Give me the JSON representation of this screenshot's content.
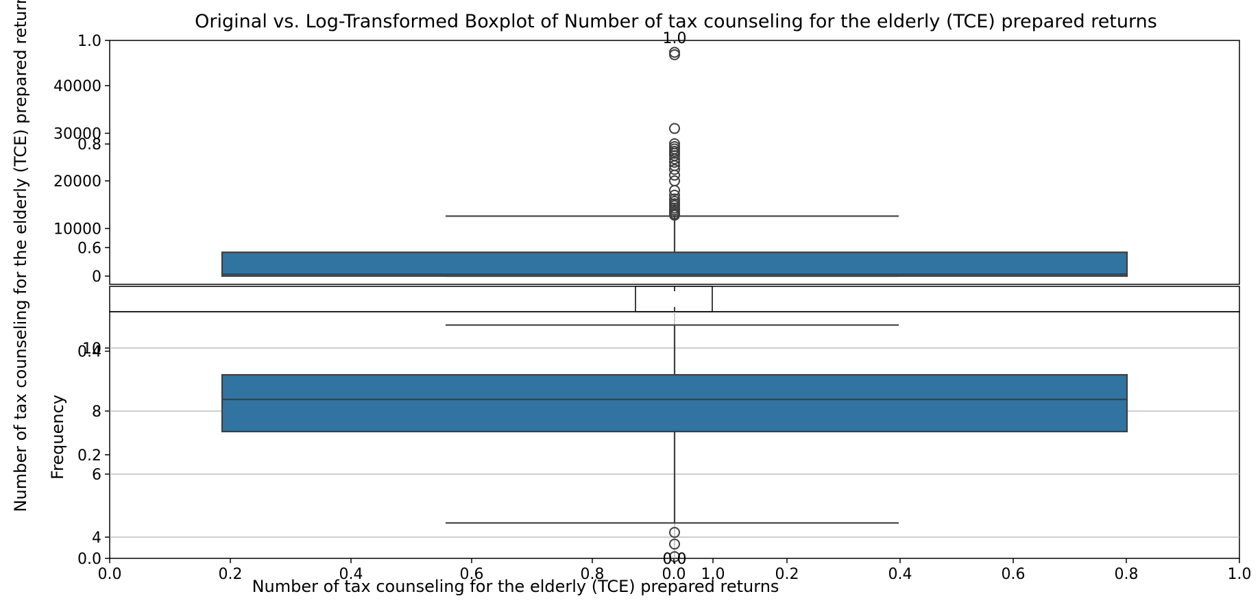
{
  "figure": {
    "title": "Original vs. Log-Transformed Boxplot of Number of tax counseling for the elderly (TCE) prepared returns",
    "xlabel": "Number of tax counseling for the elderly (TCE) prepared returns",
    "ylabel": "Number of tax counseling for the elderly (TCE) prepared returns",
    "ylabel_secondary": "Frequency"
  },
  "chart_data": [
    {
      "type": "boxplot",
      "name": "original",
      "orientation": "vertical",
      "color": "#3274a1",
      "edge_color": "#3f3f3f",
      "ylim": [
        -2500,
        50000
      ],
      "yticks": [
        0,
        10000,
        20000,
        30000,
        40000
      ],
      "stats": {
        "whisker_low": 0,
        "q1": 0,
        "median": 400,
        "q3": 5000,
        "whisker_high": 12600
      },
      "outliers": [
        12800,
        13100,
        13500,
        13900,
        14300,
        14800,
        15200,
        15700,
        16200,
        17000,
        18000,
        20000,
        21200,
        22400,
        23200,
        23900,
        24600,
        25300,
        25800,
        26200,
        26700,
        27200,
        27800,
        31000,
        46500,
        47000
      ],
      "grid": false
    },
    {
      "type": "boxplot",
      "name": "log-transformed",
      "orientation": "vertical",
      "color": "#3274a1",
      "edge_color": "#3f3f3f",
      "ylim": [
        3.3,
        11.4
      ],
      "yticks": [
        4,
        6,
        8,
        10
      ],
      "stats": {
        "whisker_low": 4.45,
        "q1": 7.35,
        "median": 8.37,
        "q3": 9.15,
        "whisker_high": 10.73
      },
      "outliers": [
        4.15,
        3.78,
        3.38
      ],
      "grid": true
    },
    {
      "type": "empty-axes",
      "name": "overlay-left",
      "xticks": [
        "0.0",
        "0.2",
        "0.4",
        "0.6",
        "0.8",
        "1.0"
      ],
      "yticks": [
        "0.0",
        "0.2",
        "0.4",
        "0.6",
        "0.8",
        "1.0"
      ],
      "xlim": [
        0,
        1
      ],
      "ylim": [
        0,
        1
      ]
    },
    {
      "type": "empty-axes",
      "name": "overlay-right",
      "xticks": [
        "0.0",
        "0.2",
        "0.4",
        "0.6",
        "0.8",
        "1.0"
      ],
      "yticks": [
        "0.0",
        "1.0"
      ],
      "xlim": [
        0,
        1
      ],
      "ylim": [
        0,
        1
      ]
    }
  ]
}
